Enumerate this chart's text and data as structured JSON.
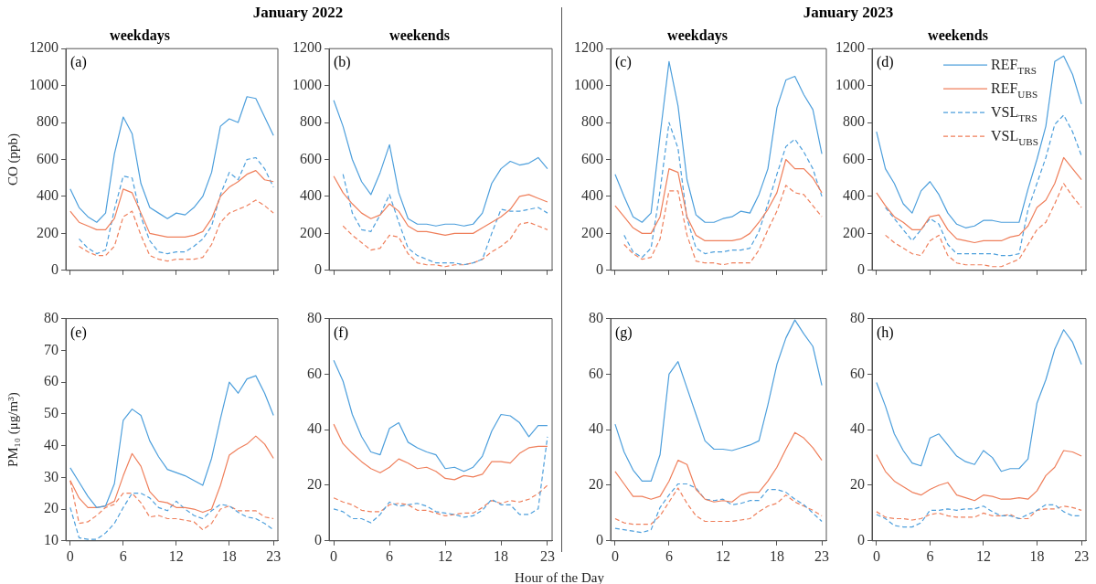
{
  "chart_data": [
    {
      "type": "line",
      "title": "weekdays",
      "subtitle": "January 2022",
      "ylabel": "CO (ppb)",
      "annotations": [
        "(a)"
      ],
      "x": [
        0,
        1,
        2,
        3,
        4,
        5,
        6,
        7,
        8,
        9,
        10,
        11,
        12,
        13,
        14,
        15,
        16,
        17,
        18,
        19,
        20,
        21,
        22,
        23
      ],
      "xlim": [
        -0.5,
        23.5
      ],
      "xticks": [
        0,
        6,
        12,
        18,
        23
      ],
      "ylim": [
        0,
        1200
      ],
      "yticks": [
        0,
        200,
        400,
        600,
        800,
        1000,
        1200
      ],
      "tick_labels": "y",
      "series": [
        {
          "color": "#4d9fdc",
          "line_style": "solid",
          "values": [
            440,
            340,
            290,
            260,
            310,
            630,
            830,
            740,
            470,
            340,
            310,
            280,
            310,
            300,
            340,
            400,
            530,
            780,
            820,
            800,
            940,
            930,
            830,
            730
          ]
        },
        {
          "color": "#ef7f5b",
          "line_style": "solid",
          "values": [
            320,
            260,
            240,
            220,
            220,
            280,
            440,
            420,
            310,
            200,
            190,
            180,
            180,
            180,
            190,
            210,
            280,
            400,
            450,
            480,
            520,
            540,
            490,
            480
          ]
        },
        {
          "color": "#4d9fdc",
          "line_style": "dashed",
          "values": [
            null,
            170,
            120,
            90,
            110,
            330,
            510,
            500,
            290,
            160,
            100,
            90,
            100,
            100,
            130,
            170,
            240,
            410,
            530,
            490,
            600,
            610,
            550,
            450
          ]
        },
        {
          "color": "#ef7f5b",
          "line_style": "dashed",
          "values": [
            null,
            130,
            100,
            80,
            80,
            130,
            290,
            320,
            190,
            80,
            60,
            50,
            60,
            60,
            60,
            70,
            140,
            260,
            310,
            330,
            350,
            380,
            350,
            310
          ]
        }
      ]
    },
    {
      "type": "line",
      "title": "weekends",
      "annotations": [
        "(b)"
      ],
      "x": [
        0,
        1,
        2,
        3,
        4,
        5,
        6,
        7,
        8,
        9,
        10,
        11,
        12,
        13,
        14,
        15,
        16,
        17,
        18,
        19,
        20,
        21,
        22,
        23
      ],
      "xlim": [
        -0.5,
        23.5
      ],
      "xticks": [
        0,
        6,
        12,
        18,
        23
      ],
      "ylim": [
        0,
        1200
      ],
      "yticks": [
        0,
        200,
        400,
        600,
        800,
        1000,
        1200
      ],
      "tick_labels": "y",
      "series": [
        {
          "color": "#4d9fdc",
          "line_style": "solid",
          "values": [
            920,
            780,
            600,
            480,
            410,
            530,
            680,
            420,
            280,
            250,
            250,
            240,
            250,
            250,
            240,
            250,
            310,
            470,
            550,
            590,
            570,
            580,
            610,
            550
          ]
        },
        {
          "color": "#ef7f5b",
          "line_style": "solid",
          "values": [
            510,
            420,
            360,
            310,
            280,
            300,
            360,
            320,
            240,
            210,
            210,
            200,
            190,
            200,
            200,
            200,
            230,
            260,
            290,
            330,
            400,
            410,
            390,
            370
          ]
        },
        {
          "color": "#4d9fdc",
          "line_style": "dashed",
          "values": [
            null,
            520,
            310,
            220,
            210,
            300,
            410,
            260,
            120,
            80,
            60,
            40,
            40,
            40,
            30,
            40,
            60,
            200,
            330,
            320,
            320,
            330,
            340,
            310
          ]
        },
        {
          "color": "#ef7f5b",
          "line_style": "dashed",
          "values": [
            null,
            240,
            190,
            150,
            110,
            120,
            190,
            180,
            90,
            40,
            30,
            30,
            20,
            30,
            30,
            40,
            60,
            100,
            130,
            170,
            250,
            260,
            240,
            220
          ]
        }
      ]
    },
    {
      "type": "line",
      "title": "weekdays",
      "subtitle": "January 2023",
      "annotations": [
        "(c)"
      ],
      "x": [
        0,
        1,
        2,
        3,
        4,
        5,
        6,
        7,
        8,
        9,
        10,
        11,
        12,
        13,
        14,
        15,
        16,
        17,
        18,
        19,
        20,
        21,
        22,
        23
      ],
      "xlim": [
        -0.5,
        23.5
      ],
      "xticks": [
        0,
        6,
        12,
        18,
        23
      ],
      "ylim": [
        0,
        1200
      ],
      "yticks": [
        0,
        200,
        400,
        600,
        800,
        1000,
        1200
      ],
      "tick_labels": "y",
      "series": [
        {
          "color": "#4d9fdc",
          "line_style": "solid",
          "values": [
            520,
            400,
            290,
            260,
            310,
            730,
            1130,
            890,
            490,
            300,
            260,
            260,
            280,
            290,
            320,
            310,
            410,
            550,
            880,
            1030,
            1050,
            950,
            870,
            630
          ]
        },
        {
          "color": "#ef7f5b",
          "line_style": "solid",
          "values": [
            350,
            290,
            230,
            200,
            200,
            290,
            550,
            530,
            290,
            190,
            160,
            160,
            160,
            160,
            170,
            200,
            260,
            330,
            420,
            600,
            550,
            550,
            500,
            420
          ]
        },
        {
          "color": "#4d9fdc",
          "line_style": "dashed",
          "values": [
            null,
            190,
            100,
            70,
            120,
            430,
            800,
            660,
            280,
            120,
            90,
            100,
            100,
            110,
            110,
            120,
            210,
            360,
            520,
            670,
            710,
            640,
            550,
            400
          ]
        },
        {
          "color": "#ef7f5b",
          "line_style": "dashed",
          "values": [
            null,
            140,
            90,
            60,
            70,
            170,
            430,
            430,
            190,
            50,
            40,
            40,
            30,
            40,
            40,
            40,
            110,
            220,
            320,
            460,
            420,
            410,
            350,
            290
          ]
        }
      ]
    },
    {
      "type": "line",
      "title": "weekends",
      "annotations": [
        "(d)"
      ],
      "legend": "top right",
      "x": [
        0,
        1,
        2,
        3,
        4,
        5,
        6,
        7,
        8,
        9,
        10,
        11,
        12,
        13,
        14,
        15,
        16,
        17,
        18,
        19,
        20,
        21,
        22,
        23
      ],
      "xlim": [
        -0.5,
        23.5
      ],
      "xticks": [
        0,
        6,
        12,
        18,
        23
      ],
      "ylim": [
        0,
        1200
      ],
      "yticks": [
        0,
        200,
        400,
        600,
        800,
        1000,
        1200
      ],
      "tick_labels": "y",
      "series": [
        {
          "name": "REF$_{TRS}$",
          "color": "#4d9fdc",
          "line_style": "solid",
          "values": [
            750,
            550,
            470,
            360,
            310,
            430,
            480,
            410,
            310,
            250,
            230,
            240,
            270,
            270,
            260,
            260,
            260,
            440,
            600,
            780,
            1130,
            1160,
            1060,
            900
          ]
        },
        {
          "name": "REF$_{UBS}$",
          "color": "#ef7f5b",
          "line_style": "solid",
          "values": [
            420,
            350,
            290,
            260,
            220,
            220,
            290,
            300,
            220,
            170,
            160,
            150,
            160,
            160,
            160,
            180,
            190,
            240,
            340,
            380,
            470,
            610,
            550,
            490
          ]
        },
        {
          "name": "VSL$_{TRS}$",
          "color": "#4d9fdc",
          "line_style": "dashed",
          "values": [
            null,
            340,
            280,
            220,
            160,
            220,
            280,
            250,
            140,
            90,
            90,
            90,
            90,
            90,
            80,
            80,
            90,
            330,
            470,
            610,
            790,
            840,
            750,
            620
          ]
        },
        {
          "name": "VSL$_{UBS}$",
          "color": "#ef7f5b",
          "line_style": "dashed",
          "values": [
            null,
            190,
            150,
            120,
            90,
            80,
            160,
            190,
            80,
            40,
            30,
            30,
            30,
            20,
            20,
            40,
            60,
            140,
            220,
            260,
            360,
            470,
            400,
            340
          ]
        }
      ]
    },
    {
      "type": "line",
      "ylabel": "PM₁₀ (μg/m³)",
      "annotations": [
        "(e)"
      ],
      "x": [
        0,
        1,
        2,
        3,
        4,
        5,
        6,
        7,
        8,
        9,
        10,
        11,
        12,
        13,
        14,
        15,
        16,
        17,
        18,
        19,
        20,
        21,
        22,
        23
      ],
      "xlim": [
        -0.5,
        23.5
      ],
      "xticks": [
        0,
        6,
        12,
        18,
        23
      ],
      "ylim": [
        10,
        80
      ],
      "yticks": [
        10,
        20,
        30,
        40,
        50,
        60,
        70,
        80
      ],
      "series": [
        {
          "color": "#4d9fdc",
          "line_style": "solid",
          "values": [
            33,
            28.5,
            24,
            20.5,
            21,
            28,
            48,
            51.5,
            49.5,
            41.5,
            36.5,
            32.5,
            31.5,
            30.5,
            29,
            27.5,
            36,
            48.5,
            60,
            56.5,
            61,
            62,
            56.5,
            49.5
          ]
        },
        {
          "color": "#ef7f5b",
          "line_style": "solid",
          "values": [
            29,
            23.5,
            20.5,
            20.5,
            21,
            22.5,
            30.5,
            37.5,
            33.5,
            25.5,
            22.5,
            22,
            20.5,
            20.5,
            20,
            19,
            20,
            27.5,
            37,
            39,
            40.5,
            43,
            40.5,
            36
          ]
        },
        {
          "color": "#4d9fdc",
          "line_style": "dashed",
          "values": [
            20.5,
            11,
            10.5,
            10.5,
            12.5,
            15.5,
            20.5,
            25,
            25,
            23.5,
            20.5,
            19.5,
            22.5,
            20,
            18,
            17,
            19.5,
            21.5,
            21,
            19,
            17.5,
            17,
            15.5,
            13.5
          ]
        },
        {
          "color": "#ef7f5b",
          "line_style": "dashed",
          "values": [
            29,
            15.5,
            16,
            18,
            20.5,
            21.5,
            25,
            25,
            22,
            17.5,
            18,
            17,
            17,
            16.5,
            16,
            13.5,
            15.5,
            20,
            21,
            19.5,
            19.5,
            19.5,
            17.5,
            17
          ]
        }
      ]
    },
    {
      "type": "line",
      "xlabel": "Hour of the Day",
      "annotations": [
        "(f)"
      ],
      "x": [
        0,
        1,
        2,
        3,
        4,
        5,
        6,
        7,
        8,
        9,
        10,
        11,
        12,
        13,
        14,
        15,
        16,
        17,
        18,
        19,
        20,
        21,
        22,
        23
      ],
      "xlim": [
        -0.5,
        23.5
      ],
      "xticks": [
        0,
        6,
        12,
        18,
        23
      ],
      "ylim": [
        0,
        80
      ],
      "yticks": [
        0,
        20,
        40,
        60,
        80
      ],
      "series": [
        {
          "color": "#4d9fdc",
          "line_style": "solid",
          "values": [
            65,
            57.5,
            45.5,
            37.5,
            32,
            31,
            40.5,
            42.5,
            35.5,
            33.5,
            32,
            31,
            26,
            26.5,
            25,
            26.5,
            30.5,
            39.5,
            45.5,
            45,
            42.5,
            37.5,
            41.5,
            41.5
          ]
        },
        {
          "color": "#ef7f5b",
          "line_style": "solid",
          "values": [
            42,
            35,
            31.5,
            28.5,
            26,
            24.5,
            26.5,
            29.5,
            28,
            26,
            26.5,
            25,
            22.5,
            22,
            23.5,
            23,
            24,
            28.5,
            28.5,
            28,
            31.5,
            33.5,
            34,
            34
          ]
        },
        {
          "color": "#4d9fdc",
          "line_style": "dashed",
          "values": [
            11.5,
            10.5,
            8,
            8,
            6.5,
            9.5,
            14,
            12.5,
            13,
            13.5,
            12.5,
            10.5,
            10,
            9.5,
            8.5,
            9,
            11,
            15,
            13,
            13,
            9.5,
            9.5,
            11.5,
            37.5
          ]
        },
        {
          "color": "#ef7f5b",
          "line_style": "dashed",
          "values": [
            15.5,
            14,
            13,
            11,
            10.5,
            10.5,
            13,
            13.5,
            13,
            11,
            11,
            10,
            9,
            9.5,
            10,
            10,
            12,
            14.5,
            13.5,
            14.5,
            14,
            15,
            17,
            20
          ]
        }
      ]
    },
    {
      "type": "line",
      "annotations": [
        "(g)"
      ],
      "x": [
        0,
        1,
        2,
        3,
        4,
        5,
        6,
        7,
        8,
        9,
        10,
        11,
        12,
        13,
        14,
        15,
        16,
        17,
        18,
        19,
        20,
        21,
        22,
        23
      ],
      "xlim": [
        -0.5,
        23.5
      ],
      "xticks": [
        0,
        6,
        12,
        18,
        23
      ],
      "ylim": [
        0,
        80
      ],
      "yticks": [
        0,
        20,
        40,
        60,
        80
      ],
      "series": [
        {
          "color": "#4d9fdc",
          "line_style": "solid",
          "values": [
            42,
            32,
            25.5,
            21.5,
            21.5,
            31,
            60,
            64.5,
            55,
            45.5,
            36,
            33,
            33,
            32.5,
            33.5,
            34.5,
            36,
            49,
            63.5,
            73,
            79.5,
            74.5,
            70,
            56
          ]
        },
        {
          "color": "#ef7f5b",
          "line_style": "solid",
          "values": [
            25,
            20.5,
            16,
            16,
            15,
            16,
            21.5,
            29,
            27.5,
            18.5,
            15,
            14,
            14.5,
            14,
            16.5,
            17.5,
            17.5,
            21.5,
            26.5,
            33,
            39,
            37,
            33.5,
            29
          ]
        },
        {
          "color": "#4d9fdc",
          "line_style": "dashed",
          "values": [
            4.5,
            4,
            3.5,
            3,
            4,
            12,
            16.5,
            20.5,
            20.5,
            19,
            15,
            14.5,
            15,
            13,
            13.5,
            14.5,
            14.5,
            18.5,
            18.5,
            17.5,
            15,
            13,
            10,
            7
          ]
        },
        {
          "color": "#ef7f5b",
          "line_style": "dashed",
          "values": [
            8,
            6.5,
            6,
            6,
            6,
            9,
            14,
            19,
            13.5,
            9,
            7,
            7,
            7,
            7,
            7.5,
            8,
            10.5,
            12.5,
            13.5,
            16.5,
            14,
            12.5,
            11,
            9
          ]
        }
      ]
    },
    {
      "type": "line",
      "annotations": [
        "(h)"
      ],
      "x": [
        0,
        1,
        2,
        3,
        4,
        5,
        6,
        7,
        8,
        9,
        10,
        11,
        12,
        13,
        14,
        15,
        16,
        17,
        18,
        19,
        20,
        21,
        22,
        23
      ],
      "xlim": [
        -0.5,
        23.5
      ],
      "xticks": [
        0,
        6,
        12,
        18,
        23
      ],
      "ylim": [
        0,
        80
      ],
      "yticks": [
        0,
        20,
        40,
        60,
        80
      ],
      "series": [
        {
          "color": "#4d9fdc",
          "line_style": "solid",
          "values": [
            57,
            48.5,
            38.5,
            32.5,
            28,
            27,
            37,
            38.5,
            34.5,
            30.5,
            28.5,
            27.5,
            32.5,
            30,
            25,
            26,
            26,
            29.5,
            49.5,
            58,
            69,
            76,
            71.5,
            63.5
          ]
        },
        {
          "color": "#ef7f5b",
          "line_style": "solid",
          "values": [
            31,
            25,
            21.5,
            19.5,
            17.5,
            16.5,
            18.5,
            20,
            21,
            16.5,
            15.5,
            14.5,
            16.5,
            16,
            15,
            15,
            15.5,
            15,
            18,
            23.5,
            26.5,
            32.5,
            32,
            30.5
          ]
        },
        {
          "color": "#4d9fdc",
          "line_style": "dashed",
          "values": [
            9.5,
            8,
            5.5,
            5,
            5,
            6.5,
            11,
            11,
            11.5,
            11,
            11.5,
            11.5,
            12.5,
            10.5,
            9,
            9,
            8,
            9.5,
            11,
            13,
            13,
            10.5,
            9,
            9
          ]
        },
        {
          "color": "#ef7f5b",
          "line_style": "dashed",
          "values": [
            10.5,
            8.5,
            8,
            8,
            7.5,
            8,
            9.5,
            10,
            9,
            8.5,
            8.5,
            8.5,
            10,
            9,
            9,
            9.5,
            8,
            8,
            11,
            11.5,
            11.5,
            12.5,
            12,
            11
          ]
        }
      ]
    }
  ]
}
